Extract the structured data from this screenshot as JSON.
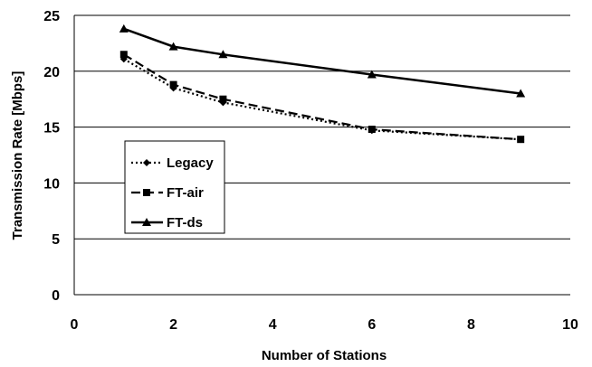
{
  "chart_data": {
    "type": "line",
    "title": "",
    "xlabel": "Number of Stations",
    "ylabel": "Transmission Rate [Mbps]",
    "xlim": [
      0,
      10
    ],
    "ylim": [
      0,
      25
    ],
    "x_ticks": [
      "0",
      "2",
      "4",
      "6",
      "8",
      "10"
    ],
    "y_ticks": [
      "0",
      "5",
      "10",
      "15",
      "20",
      "25"
    ],
    "grid": "horizontal",
    "legend_position": "inside-left",
    "series": [
      {
        "name": "Legacy",
        "style": "dotted",
        "marker": "diamond",
        "color": "#000000",
        "x": [
          1,
          2,
          3,
          6,
          9
        ],
        "y": [
          21.1,
          18.5,
          17.2,
          14.7,
          13.9
        ]
      },
      {
        "name": "FT-air",
        "style": "dashed",
        "marker": "square",
        "color": "#000000",
        "x": [
          1,
          2,
          3,
          6,
          9
        ],
        "y": [
          21.5,
          18.8,
          17.5,
          14.8,
          13.9
        ]
      },
      {
        "name": "FT-ds",
        "style": "solid",
        "marker": "triangle",
        "color": "#000000",
        "x": [
          1,
          2,
          3,
          6,
          9
        ],
        "y": [
          23.8,
          22.2,
          21.5,
          19.7,
          18.0
        ]
      }
    ]
  }
}
